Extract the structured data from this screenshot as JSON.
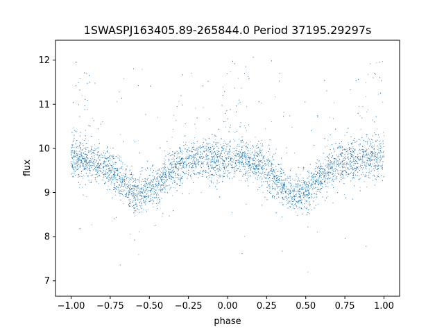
{
  "chart_data": {
    "type": "scatter",
    "title": "1SWASPJ163405.89-265844.0 Period 37195.29297s",
    "xlabel": "phase",
    "ylabel": "flux",
    "xlim": [
      -1.1,
      1.1
    ],
    "ylim": [
      6.65,
      12.45
    ],
    "xticks": [
      -1.0,
      -0.75,
      -0.5,
      -0.25,
      0.0,
      0.25,
      0.5,
      0.75,
      1.0
    ],
    "xtick_labels": [
      "−1.00",
      "−0.75",
      "−0.50",
      "−0.25",
      "0.00",
      "0.25",
      "0.50",
      "0.75",
      "1.00"
    ],
    "yticks": [
      7,
      8,
      9,
      10,
      11,
      12
    ],
    "ytick_labels": [
      "7",
      "8",
      "9",
      "10",
      "11",
      "12"
    ],
    "grid": false,
    "point_color": "#1f77b4",
    "model": {
      "baseline": 9.75,
      "dip_centers": [
        -0.55,
        0.45
      ],
      "dip_depth": 0.8,
      "dip_width": 0.18,
      "scatter_sigma": 0.22,
      "flare_centers": [
        -0.95,
        0.05,
        0.95
      ],
      "flare_level": 11.5,
      "n_points": 9000,
      "phase_range": [
        -1.0,
        1.0
      ]
    },
    "series": [
      {
        "x": [
          -1.0,
          -0.9,
          -0.8,
          -0.7,
          -0.6,
          -0.55,
          -0.5,
          -0.4,
          -0.3,
          -0.2,
          -0.1,
          0.0,
          0.1,
          0.2,
          0.3,
          0.4,
          0.45,
          0.5,
          0.6,
          0.7,
          0.8,
          0.9,
          1.0
        ],
        "y": [
          9.7,
          9.7,
          9.55,
          9.4,
          9.15,
          8.95,
          9.05,
          9.35,
          9.65,
          9.75,
          9.8,
          9.75,
          9.7,
          9.6,
          9.4,
          9.15,
          8.95,
          9.05,
          9.4,
          9.65,
          9.75,
          9.75,
          9.7
        ]
      }
    ]
  }
}
